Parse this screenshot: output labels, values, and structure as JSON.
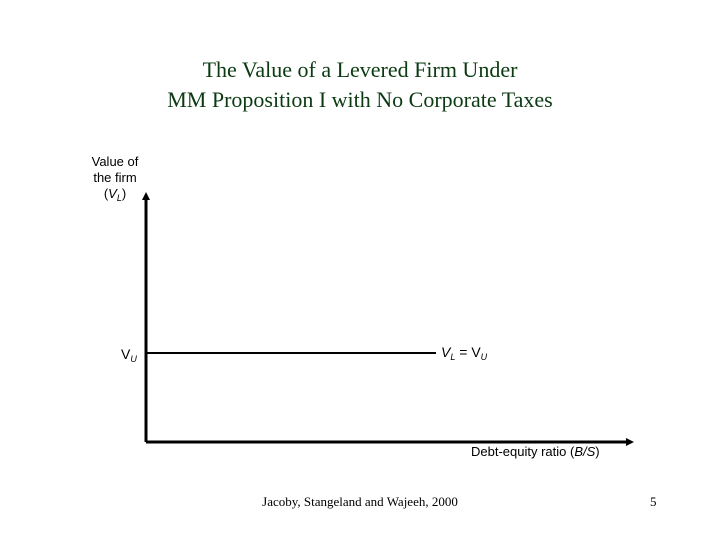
{
  "title_line1": "The Value of a Levered Firm Under",
  "title_line2": "MM Proposition I with No Corporate Taxes",
  "y_axis_label": {
    "line1": "Value of",
    "line2": "the firm",
    "line3_prefix": "(",
    "line3_var": "V",
    "line3_sub": "L",
    "line3_suffix": ")"
  },
  "vu_marker": {
    "var": "V",
    "sub": "U"
  },
  "line_label": {
    "left_var": "V",
    "left_sub": "L",
    "equals": " = ",
    "right_var": "V",
    "right_sub": "U"
  },
  "x_axis_label": {
    "text": "Debt-equity ratio (",
    "var": "B/S",
    "suffix": ")"
  },
  "footer": "Jacoby, Stangeland and Wajeeh, 2000",
  "page_number": "5",
  "colors": {
    "title": "#0b3a12",
    "axis": "#000000",
    "line": "#000000"
  }
}
